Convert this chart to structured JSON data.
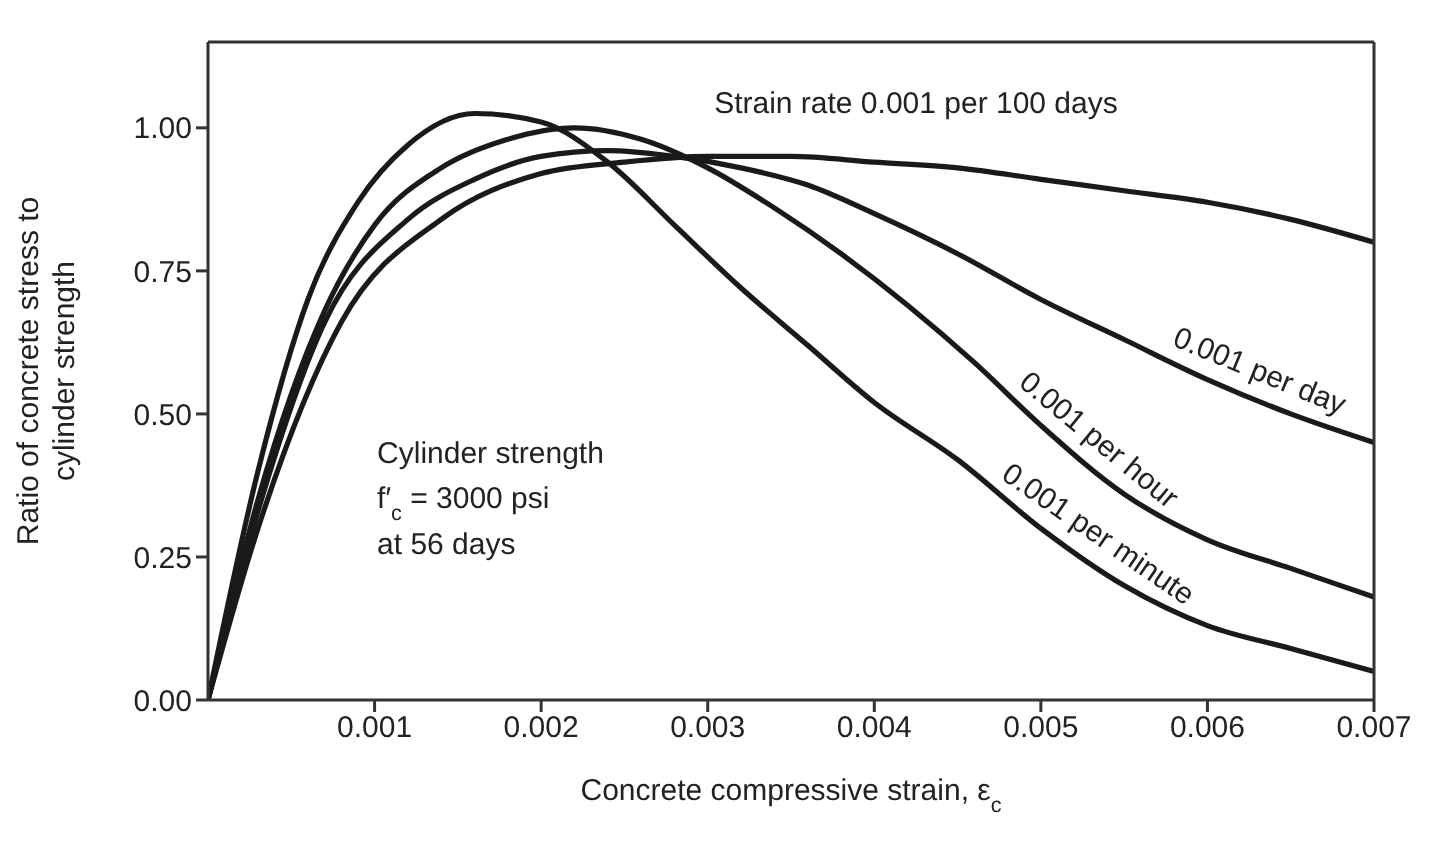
{
  "chart_data": {
    "type": "line",
    "xlabel": "Concrete compressive strain, ε$_{c}$",
    "ylabel": "Ratio of concrete stress to\ncylinder strength",
    "xlim": [
      0,
      0.007
    ],
    "xticks": [
      0.001,
      0.002,
      0.003,
      0.004,
      0.005,
      0.006,
      0.007
    ],
    "ylim": [
      0,
      1.15
    ],
    "yticks": [
      {
        "value": 0,
        "label": "0.00"
      },
      {
        "value": 0.25,
        "label": "0.25"
      },
      {
        "value": 0.5,
        "label": "0.50"
      },
      {
        "value": 0.75,
        "label": "0.75"
      },
      {
        "value": 1,
        "label": "1.00"
      }
    ],
    "grid": false,
    "legend": false,
    "marker": "none",
    "line_style": "solid",
    "annotations": [
      "Cylinder strength",
      "f′$_{c}$ = 3000 psi",
      "at 56 days"
    ],
    "series": [
      {
        "name": "0.001 per minute",
        "color": "#1a1a1a",
        "x": [
          0,
          0.0003,
          0.0006,
          0.0009,
          0.0012,
          0.0016,
          0.002,
          0.0024,
          0.0028,
          0.0032,
          0.0036,
          0.004,
          0.0045,
          0.005,
          0.0055,
          0.006,
          0.0065,
          0.007
        ],
        "values": [
          0,
          0.4,
          0.7,
          0.87,
          0.97,
          1.025,
          1.01,
          0.94,
          0.83,
          0.72,
          0.62,
          0.52,
          0.42,
          0.3,
          0.2,
          0.13,
          0.09,
          0.05
        ]
      },
      {
        "name": "0.001 per hour",
        "color": "#1a1a1a",
        "x": [
          0,
          0.0003,
          0.0007,
          0.001,
          0.0014,
          0.0018,
          0.0022,
          0.0026,
          0.003,
          0.0034,
          0.0038,
          0.0042,
          0.0046,
          0.005,
          0.0055,
          0.006,
          0.0065,
          0.007
        ],
        "values": [
          0,
          0.35,
          0.68,
          0.83,
          0.93,
          0.98,
          1.0,
          0.98,
          0.93,
          0.86,
          0.78,
          0.69,
          0.59,
          0.48,
          0.36,
          0.28,
          0.23,
          0.18
        ]
      },
      {
        "name": "0.001 per day",
        "color": "#1a1a1a",
        "x": [
          0,
          0.0003,
          0.0007,
          0.0012,
          0.0016,
          0.002,
          0.0024,
          0.0028,
          0.0032,
          0.0036,
          0.004,
          0.0045,
          0.005,
          0.0055,
          0.006,
          0.0065,
          0.007
        ],
        "values": [
          0,
          0.33,
          0.66,
          0.84,
          0.91,
          0.95,
          0.96,
          0.95,
          0.93,
          0.9,
          0.85,
          0.78,
          0.7,
          0.63,
          0.56,
          0.5,
          0.45
        ]
      },
      {
        "name": "Strain rate 0.001 per 100 days",
        "color": "#1a1a1a",
        "x": [
          0,
          0.0003,
          0.0008,
          0.0014,
          0.002,
          0.0025,
          0.003,
          0.0035,
          0.004,
          0.0045,
          0.005,
          0.0055,
          0.006,
          0.0065,
          0.007
        ],
        "values": [
          0,
          0.3,
          0.66,
          0.84,
          0.92,
          0.94,
          0.95,
          0.95,
          0.94,
          0.93,
          0.91,
          0.89,
          0.87,
          0.84,
          0.8
        ]
      }
    ]
  }
}
